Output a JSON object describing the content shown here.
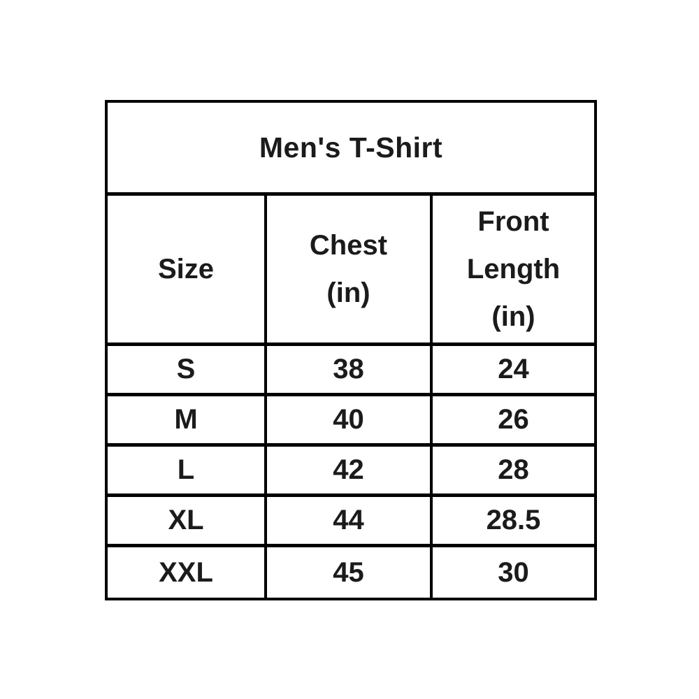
{
  "page": {
    "background_color": "#ffffff"
  },
  "size_chart": {
    "title": "Men's T-Shirt",
    "headers": [
      {
        "id": "size",
        "label": "Size"
      },
      {
        "id": "chest",
        "label": "Chest\n(in)"
      },
      {
        "id": "front_length",
        "label": "Front\nLength\n(in)"
      }
    ],
    "rows": [
      {
        "size": "S",
        "chest": "38",
        "front_length": "24"
      },
      {
        "size": "M",
        "chest": "40",
        "front_length": "26"
      },
      {
        "size": "L",
        "chest": "42",
        "front_length": "28"
      },
      {
        "size": "XL",
        "chest": "44",
        "front_length": "28.5"
      },
      {
        "size": "XXL",
        "chest": "45",
        "front_length": "30"
      }
    ],
    "colors": {
      "border": "#000000",
      "text": "#1b1b1b",
      "cell_background": "#ffffff"
    }
  },
  "chart_data": {
    "type": "table",
    "title": "Men's T-Shirt",
    "columns": [
      "Size",
      "Chest (in)",
      "Front Length (in)"
    ],
    "rows": [
      [
        "S",
        38,
        24
      ],
      [
        "M",
        40,
        26
      ],
      [
        "L",
        42,
        28
      ],
      [
        "XL",
        44,
        28.5
      ],
      [
        "XXL",
        45,
        30
      ]
    ],
    "units": "inches",
    "layout": {
      "grid": true,
      "header_rows": 2,
      "legend_position": "none"
    }
  }
}
